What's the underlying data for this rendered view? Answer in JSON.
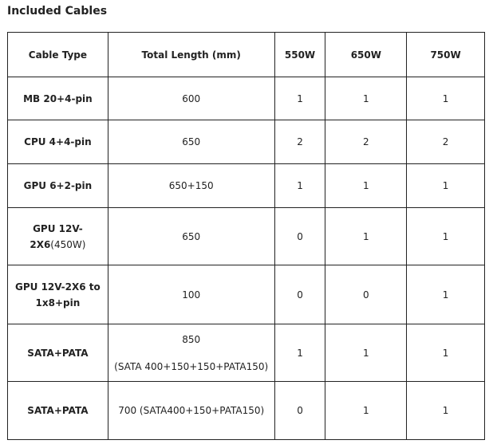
{
  "title": "Included Cables",
  "headers": [
    "Cable Type",
    "Total Length (mm)",
    "550W",
    "650W",
    "750W"
  ],
  "rows": [
    {
      "type": "MB 20+4-pin",
      "type_suffix": "",
      "length": "600",
      "length2": "",
      "w550": "1",
      "w650": "1",
      "w750": "1"
    },
    {
      "type": "CPU 4+4-pin",
      "type_suffix": "",
      "length": "650",
      "length2": "",
      "w550": "2",
      "w650": "2",
      "w750": "2"
    },
    {
      "type": "GPU 6+2-pin",
      "type_suffix": "",
      "length": "650+150",
      "length2": "",
      "w550": "1",
      "w650": "1",
      "w750": "1"
    },
    {
      "type": "GPU 12V-2X6",
      "type_suffix": "(450W)",
      "length": "650",
      "length2": "",
      "w550": "0",
      "w650": "1",
      "w750": "1"
    },
    {
      "type": "GPU 12V-2X6 to 1x8+pin",
      "type_suffix": "",
      "length": "100",
      "length2": "",
      "w550": "0",
      "w650": "0",
      "w750": "1"
    },
    {
      "type": "SATA+PATA",
      "type_suffix": "",
      "length": "850",
      "length2": "(SATA 400+150+150+PATA150)",
      "w550": "1",
      "w650": "1",
      "w750": "1"
    },
    {
      "type": "SATA+PATA",
      "type_suffix": "",
      "length": "700 (SATA400+150+PATA150)",
      "length2": "",
      "w550": "0",
      "w650": "1",
      "w750": "1"
    }
  ]
}
